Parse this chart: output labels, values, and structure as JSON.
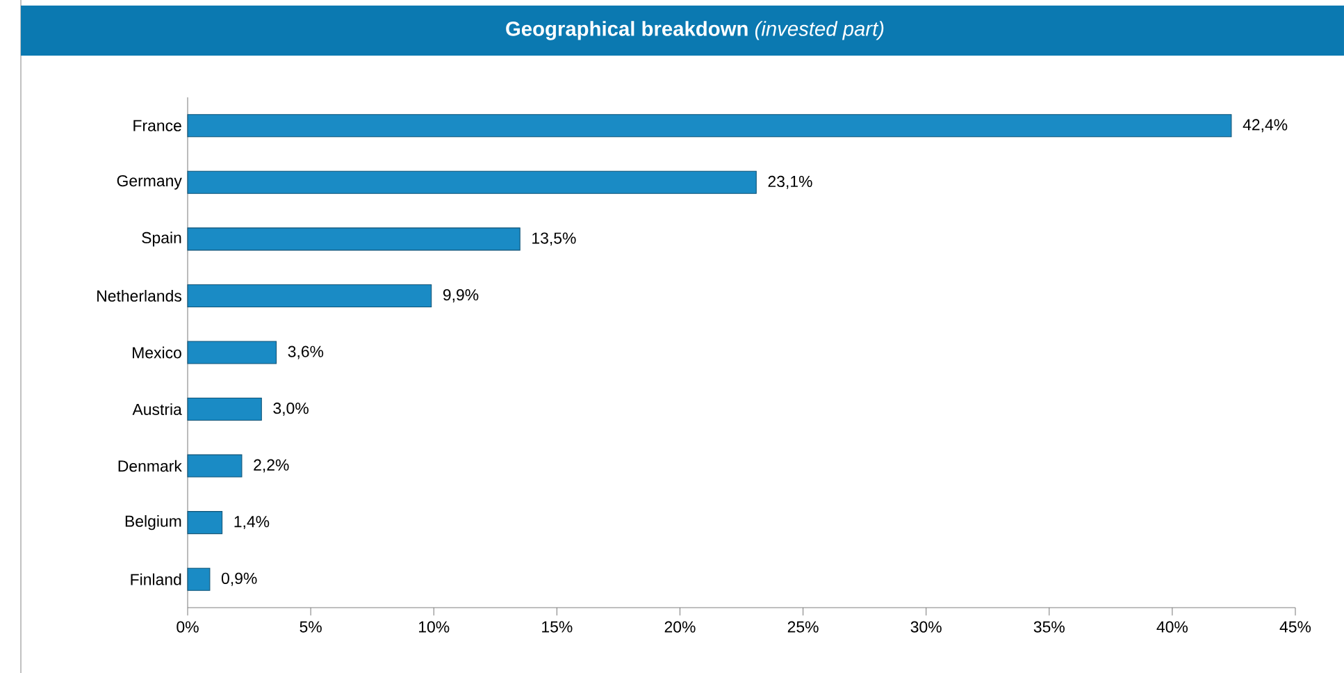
{
  "chart_data": {
    "type": "bar",
    "orientation": "horizontal",
    "title": "**Geographical breakdown** *(invested part)*",
    "categories": [
      "France",
      "Germany",
      "Spain",
      "Netherlands",
      "Mexico",
      "Austria",
      "Denmark",
      "Belgium",
      "Finland"
    ],
    "values": [
      42.4,
      23.1,
      13.5,
      9.9,
      3.6,
      3.0,
      2.2,
      1.4,
      0.9
    ],
    "value_labels": [
      "42,4%",
      "23,1%",
      "13,5%",
      "9,9%",
      "3,6%",
      "3,0%",
      "2,2%",
      "1,4%",
      "0,9%"
    ],
    "color": "#1a8bc5",
    "xlim": [
      0,
      45
    ],
    "xticks": [
      {
        "value": 0,
        "label": "0%"
      },
      {
        "value": 5,
        "label": "5%"
      },
      {
        "value": 10,
        "label": "10%"
      },
      {
        "value": 15,
        "label": "15%"
      },
      {
        "value": 20,
        "label": "20%"
      },
      {
        "value": 25,
        "label": "25%"
      },
      {
        "value": 30,
        "label": "30%"
      },
      {
        "value": 35,
        "label": "35%"
      },
      {
        "value": 40,
        "label": "40%"
      },
      {
        "value": 45,
        "label": "45%"
      }
    ]
  }
}
